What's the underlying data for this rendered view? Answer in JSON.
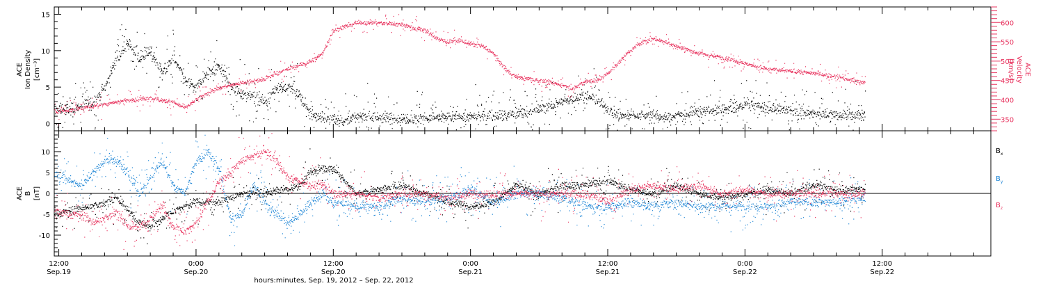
{
  "colors": {
    "black": "#000000",
    "pink": "#e8345f",
    "blue": "#1f86d6"
  },
  "xaxis": {
    "label": "hours:minutes, Sep. 19, 2012 – Sep. 22, 2012",
    "ticks": [
      {
        "time": "12:00",
        "date": "Sep.19",
        "h": 12
      },
      {
        "time": "0:00",
        "date": "Sep.20",
        "h": 24
      },
      {
        "time": "12:00",
        "date": "Sep.20",
        "h": 36
      },
      {
        "time": "0:00",
        "date": "Sep.21",
        "h": 48
      },
      {
        "time": "12:00",
        "date": "Sep.21",
        "h": 60
      },
      {
        "time": "0:00",
        "date": "Sep.22",
        "h": 72
      },
      {
        "time": "12:00",
        "date": "Sep.22",
        "h": 84
      }
    ]
  },
  "chart_data": [
    {
      "type": "scatter",
      "panel": "top",
      "xrange_hours": [
        11.6,
        93.5
      ],
      "left_axis": {
        "label_lines": [
          "ACE",
          "Ion Density"
        ],
        "unit_label": "[cm⁻³]",
        "ylim": [
          -1,
          16
        ],
        "ticks": [
          0,
          5,
          10,
          15
        ]
      },
      "right_axis": {
        "label_lines": [
          "ACE",
          "Velocity"
        ],
        "unit_label": "[km/s]",
        "ylim": [
          320,
          640
        ],
        "ticks": [
          350,
          400,
          450,
          500,
          550,
          600
        ]
      },
      "series": [
        {
          "axis": "left",
          "color": "black",
          "x": [
            11.6,
            13,
            14,
            15,
            16,
            17,
            18,
            19,
            20,
            21,
            22,
            23,
            24,
            25,
            26,
            27,
            28,
            29,
            30,
            31,
            32,
            33,
            34,
            35,
            36,
            37,
            38,
            39,
            40,
            41,
            42,
            43,
            44,
            45,
            46,
            47,
            48,
            49,
            50,
            51,
            52,
            53,
            54,
            55,
            56,
            57,
            58,
            59,
            60,
            61,
            62,
            63,
            64,
            65,
            66,
            67,
            68,
            69,
            70,
            71,
            72,
            73,
            74,
            75,
            76,
            77,
            78,
            79,
            80,
            81,
            82.5
          ],
          "y": [
            2,
            2,
            2.5,
            3,
            5,
            9,
            11,
            9,
            10,
            7,
            9,
            6,
            5,
            7,
            8,
            5,
            4,
            4,
            3,
            5,
            5,
            4,
            1,
            1,
            0.5,
            0.5,
            0.8,
            1,
            0.9,
            0.8,
            0.8,
            0.7,
            0.8,
            0.8,
            0.9,
            1,
            1,
            1,
            1.3,
            1.2,
            1.3,
            1.5,
            2,
            2.5,
            3,
            3.5,
            4,
            3.3,
            2,
            1,
            1.3,
            1.2,
            1.2,
            0.8,
            1.2,
            1.5,
            1.7,
            1.8,
            1.8,
            2.2,
            2.5,
            2.5,
            2.3,
            2,
            1.8,
            1.5,
            1.5,
            1.2,
            1.2,
            1.2,
            1.2
          ],
          "noise": 1.5,
          "scatter_frac": 0.28
        },
        {
          "axis": "right",
          "color": "pink",
          "x": [
            11.6,
            13,
            15,
            16,
            18,
            20,
            22,
            23,
            24,
            25,
            26,
            27,
            28,
            30,
            31,
            32,
            33,
            34,
            35,
            36,
            38,
            40,
            42,
            44,
            45,
            46,
            47,
            48,
            49,
            50,
            51,
            52,
            53,
            54,
            55,
            56,
            57,
            58,
            59,
            60,
            61,
            62,
            63,
            64,
            65,
            66,
            67,
            68,
            70,
            72,
            74,
            76,
            78,
            80,
            82.5
          ],
          "y": [
            370,
            375,
            385,
            390,
            400,
            405,
            395,
            380,
            400,
            420,
            430,
            440,
            445,
            455,
            470,
            480,
            490,
            500,
            520,
            580,
            600,
            600,
            595,
            580,
            560,
            550,
            555,
            545,
            540,
            520,
            480,
            460,
            455,
            450,
            445,
            440,
            430,
            450,
            450,
            470,
            500,
            530,
            550,
            560,
            550,
            540,
            530,
            520,
            510,
            495,
            480,
            475,
            470,
            460,
            445
          ],
          "noise": 11,
          "scatter_frac": 0.18
        }
      ]
    },
    {
      "type": "scatter",
      "panel": "bottom",
      "xrange_hours": [
        11.6,
        93.5
      ],
      "left_axis": {
        "label_lines": [
          "ACE",
          "B"
        ],
        "unit_label": "[nT]",
        "ylim": [
          -15,
          15
        ],
        "ticks": [
          -10,
          -5,
          0,
          5,
          10
        ]
      },
      "legend": [
        {
          "label": "B",
          "sub": "x",
          "color": "black"
        },
        {
          "label": "B",
          "sub": "y",
          "color": "blue"
        },
        {
          "label": "B",
          "sub": "z",
          "color": "pink"
        }
      ],
      "series": [
        {
          "name": "Bx",
          "color": "black",
          "x": [
            11.6,
            13,
            15,
            17,
            18,
            19,
            20,
            21,
            22,
            23,
            24,
            26,
            28,
            30,
            31,
            32,
            33,
            34,
            35,
            36,
            37,
            38,
            40,
            42,
            44,
            46,
            48,
            50,
            52,
            54,
            56,
            58,
            60,
            62,
            64,
            66,
            68,
            70,
            72,
            74,
            76,
            78,
            80,
            82.5
          ],
          "y": [
            -5,
            -4,
            -3,
            -1,
            -4,
            -7,
            -8,
            -6,
            -4,
            -3,
            -2,
            -2,
            0,
            0,
            1,
            1,
            2,
            5,
            6,
            6,
            3,
            0,
            1,
            2,
            0,
            -2,
            -3,
            -2,
            2,
            0,
            2,
            2,
            3,
            1,
            0,
            2,
            0,
            -1,
            0,
            1,
            0,
            2,
            1,
            1
          ],
          "noise": 1.8,
          "scatter_frac": 0.2
        },
        {
          "name": "By",
          "color": "blue",
          "x": [
            11.6,
            13,
            14,
            16,
            17,
            18,
            19,
            20,
            21,
            22,
            23,
            24,
            25,
            26,
            27,
            28,
            29,
            30,
            31,
            32,
            33,
            34,
            35,
            36,
            38,
            40,
            42,
            44,
            46,
            48,
            50,
            52,
            54,
            56,
            58,
            60,
            62,
            64,
            66,
            68,
            70,
            72,
            74,
            76,
            78,
            80,
            82.5
          ],
          "y": [
            5,
            3,
            2,
            8,
            8,
            5,
            0,
            4,
            8,
            2,
            0,
            8,
            10,
            6,
            -6,
            -5,
            2,
            -2,
            -5,
            -7,
            -5,
            -2,
            0,
            -2,
            -3,
            -3,
            -1,
            -2,
            -1,
            1,
            -2,
            0,
            0,
            -1,
            -3,
            -3,
            -2,
            -3,
            -2,
            -3,
            -3,
            -3,
            -3,
            -2,
            -2,
            -2,
            -1
          ],
          "noise": 2.2,
          "scatter_frac": 0.25
        },
        {
          "name": "Bz",
          "color": "pink",
          "x": [
            11.6,
            13,
            14,
            15,
            16,
            17,
            18,
            19,
            20,
            21,
            22,
            23,
            24,
            25,
            26,
            27,
            28,
            29,
            30,
            31,
            32,
            33,
            34,
            35,
            36,
            37,
            38,
            40,
            42,
            44,
            46,
            48,
            50,
            52,
            54,
            56,
            58,
            60,
            62,
            64,
            66,
            68,
            70,
            72,
            74,
            76,
            78,
            80,
            82.5
          ],
          "y": [
            -4,
            -5,
            -5,
            -7,
            -6,
            -4,
            -8,
            -8,
            -6,
            -3,
            -8,
            -9,
            -7,
            -2,
            3,
            5,
            8,
            9,
            10,
            8,
            4,
            3,
            2,
            2,
            0,
            0,
            0,
            -1,
            0,
            0,
            -1,
            0,
            0,
            0,
            0,
            0,
            0,
            -2,
            1,
            2,
            1,
            2,
            0,
            1,
            0,
            0,
            0,
            0,
            0
          ],
          "noise": 2,
          "scatter_frac": 0.22
        }
      ]
    }
  ]
}
